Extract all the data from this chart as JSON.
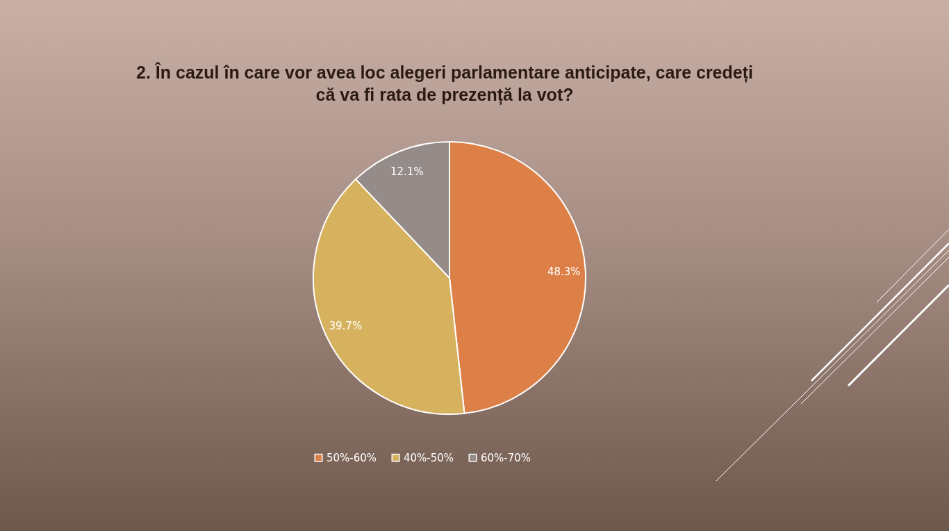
{
  "chart_data": {
    "type": "pie",
    "title": "2. În cazul în care vor avea loc alegeri parlamentare anticipate, care credeți că va fi rata de prezență la vot?",
    "categories": [
      "50%-60%",
      "40%-50%",
      "60%-70%"
    ],
    "values": [
      48.3,
      39.7,
      12.1
    ],
    "value_labels": [
      "48.3%",
      "39.7%",
      "12.1%"
    ],
    "colors": [
      "#dd8047",
      "#d6b25e",
      "#958b89"
    ],
    "legend": "bottom"
  }
}
